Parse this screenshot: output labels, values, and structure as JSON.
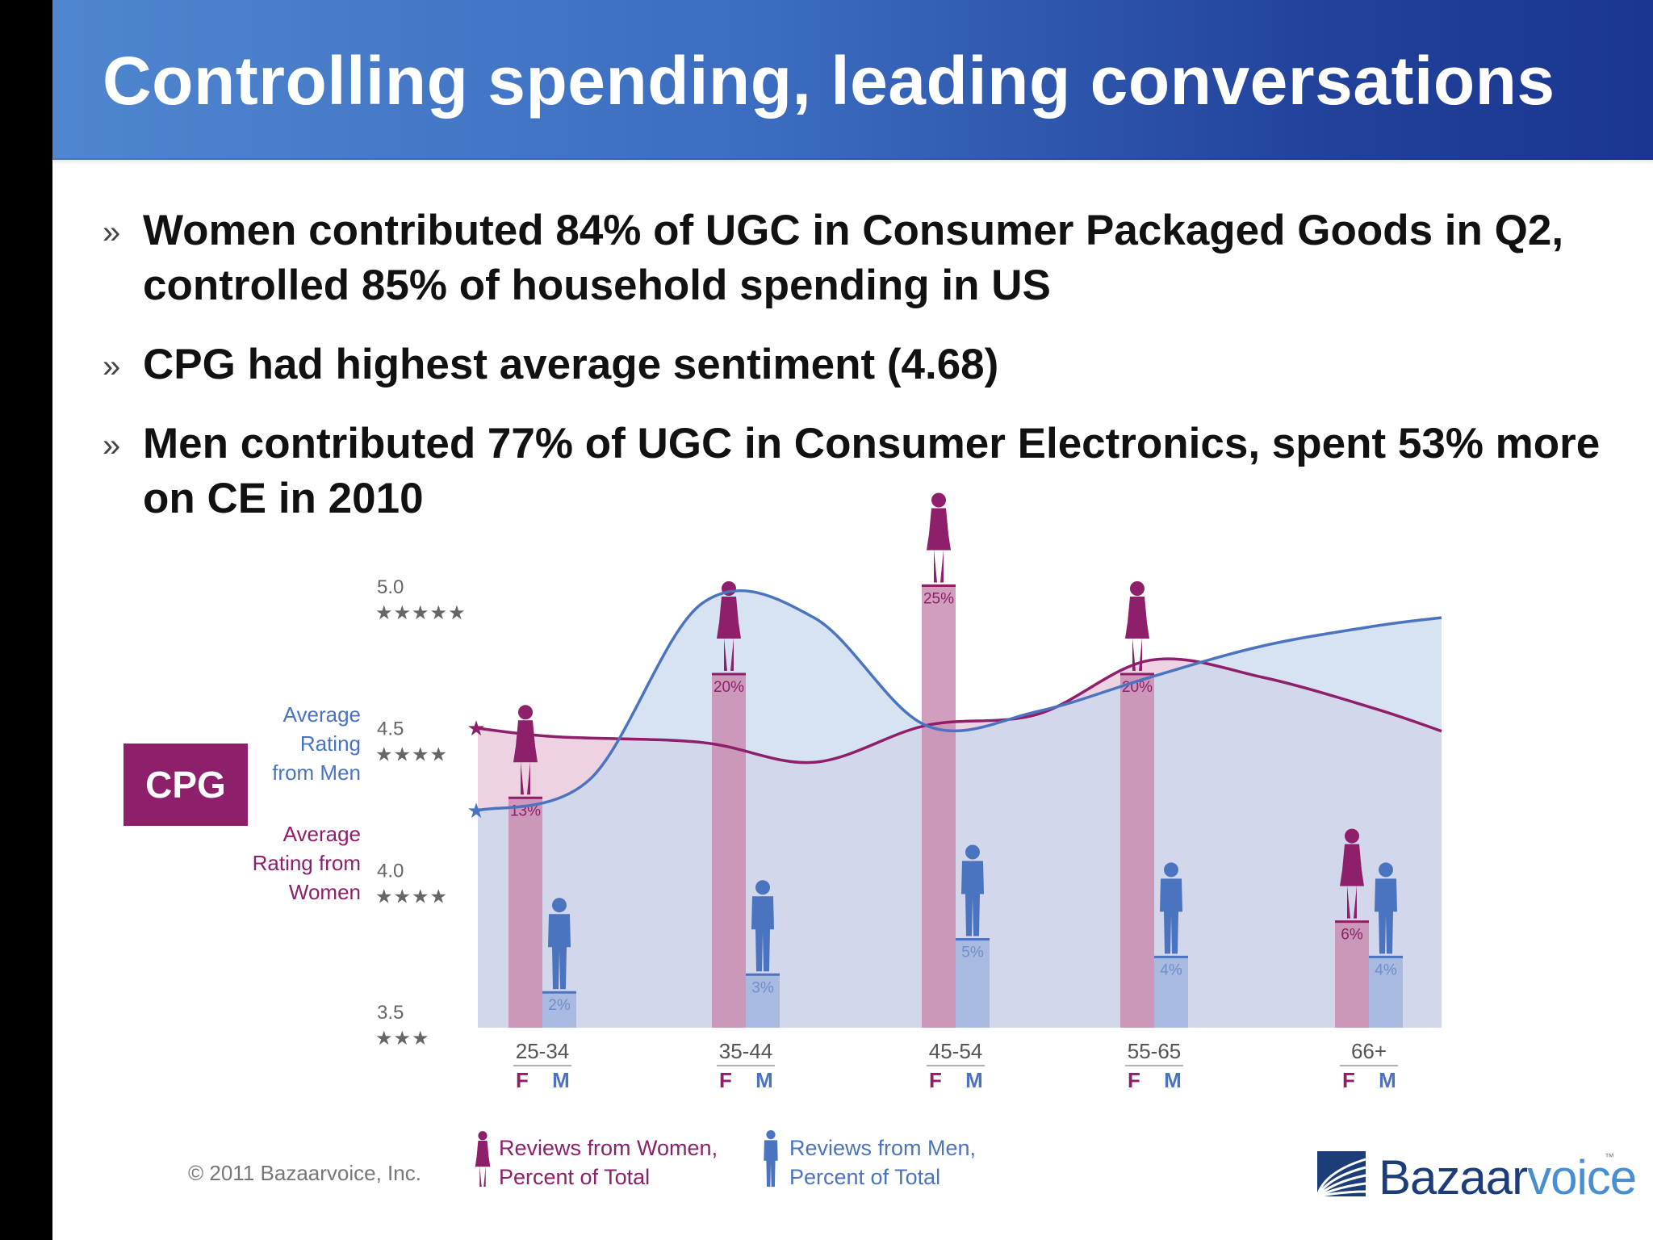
{
  "slide": {
    "title": "Controlling spending, leading conversations",
    "bullet_mark": "»",
    "bullets": [
      "Women contributed 84% of UGC in Consumer Packaged Goods in Q2, controlled 85% of household spending in US",
      "CPG had highest average sentiment (4.68)",
      "Men contributed 77% of UGC in Consumer Electronics, spent 53% more on CE in 2010"
    ],
    "category_badge": "CPG",
    "copyright": "© 2011 Bazaarvoice, Inc.",
    "logo": {
      "part1": "Bazaar",
      "part2": "voice",
      "tm": "™"
    }
  },
  "colors": {
    "women": "#8e1f6a",
    "men": "#4a74bf",
    "women_area": "#e6bfd6",
    "men_area": "#c9d8ee",
    "women_bar": "#c98db1",
    "men_bar": "#a3b7de",
    "title_bar": "#3b6cc0"
  },
  "chart_data": {
    "type": "area",
    "categories": [
      "25-34",
      "35-44",
      "45-54",
      "55-65",
      "66+"
    ],
    "ylim": [
      3.5,
      5.0
    ],
    "y_ticks": [
      {
        "value": 5.0,
        "label": "5.0",
        "stars": "★★★★★"
      },
      {
        "value": 4.5,
        "label": "4.5",
        "stars": "★★★★"
      },
      {
        "value": 4.0,
        "label": "4.0",
        "stars": "★★★★"
      },
      {
        "value": 3.5,
        "label": "3.5",
        "stars": "★★★"
      }
    ],
    "series": [
      {
        "name": "Average Rating from Men",
        "x": [
          0,
          0.5,
          1.0,
          1.5,
          2.0,
          2.5,
          3.0,
          3.5,
          4.0,
          4.3
        ],
        "values": [
          4.24,
          4.35,
          4.97,
          4.92,
          4.54,
          4.59,
          4.71,
          4.82,
          4.89,
          4.92
        ]
      },
      {
        "name": "Average Rating from Women",
        "x": [
          0,
          0.35,
          1.0,
          1.5,
          2.0,
          2.5,
          3.0,
          3.5,
          4.0,
          4.3
        ],
        "values": [
          4.53,
          4.5,
          4.48,
          4.41,
          4.54,
          4.58,
          4.77,
          4.71,
          4.6,
          4.52
        ]
      }
    ],
    "reviews_women_pct": [
      13,
      20,
      25,
      20,
      6
    ],
    "reviews_men_pct": [
      2,
      3,
      5,
      4,
      4
    ],
    "reviews_women_labels": [
      "13%",
      "20%",
      "25%",
      "20%",
      "6%"
    ],
    "reviews_men_labels": [
      "2%",
      "3%",
      "5%",
      "4%",
      "4%"
    ],
    "gender_labels": {
      "female": "F",
      "male": "M"
    },
    "left_labels": {
      "men": [
        "Average",
        "Rating",
        "from Men"
      ],
      "women": [
        "Average",
        "Rating from",
        "Women"
      ]
    },
    "legend": {
      "women": [
        "Reviews from Women,",
        "Percent of Total"
      ],
      "men": [
        "Reviews from Men,",
        "Percent of Total"
      ]
    }
  }
}
